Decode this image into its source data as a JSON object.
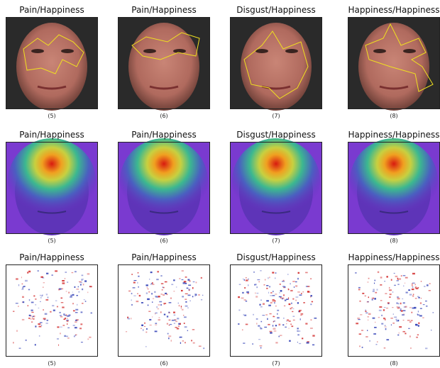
{
  "rows": [
    {
      "panels": [
        {
          "title": "Pain/Happiness",
          "caption": "(5)"
        },
        {
          "title": "Pain/Happiness",
          "caption": "(6)"
        },
        {
          "title": "Disgust/Happiness",
          "caption": "(7)"
        },
        {
          "title": "Happiness/Happiness",
          "caption": "(8)"
        }
      ]
    },
    {
      "panels": [
        {
          "title": "Pain/Happiness",
          "caption": "(5)"
        },
        {
          "title": "Pain/Happiness",
          "caption": "(6)"
        },
        {
          "title": "Disgust/Happiness",
          "caption": "(7)"
        },
        {
          "title": "Happiness/Happiness",
          "caption": "(8)"
        }
      ]
    },
    {
      "panels": [
        {
          "title": "Pain/Happiness",
          "caption": "(5)"
        },
        {
          "title": "Pain/Happiness",
          "caption": "(6)"
        },
        {
          "title": "Disgust/Happiness",
          "caption": "(7)"
        },
        {
          "title": "Happiness/Happiness",
          "caption": "(8)"
        }
      ]
    }
  ]
}
